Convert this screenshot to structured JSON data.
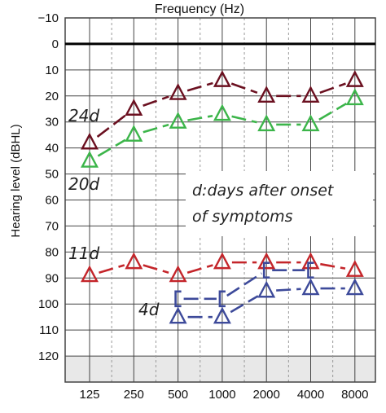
{
  "chart_data": {
    "type": "line",
    "title": "Frequency (Hz)",
    "ylabel": "Hearing level (dBHL)",
    "xlabel": "",
    "x": [
      "125",
      "250",
      "500",
      "1000",
      "2000",
      "4000",
      "8000"
    ],
    "ylim": [
      -10,
      130
    ],
    "y_inverted": true,
    "y_ticks": [
      -10,
      0,
      10,
      20,
      30,
      40,
      50,
      60,
      70,
      80,
      90,
      100,
      110,
      120
    ],
    "reference_line": 0,
    "shaded_band": [
      120,
      130
    ],
    "grid": true,
    "series": [
      {
        "name": "24d",
        "color": "#6b1020",
        "marker": "triangle",
        "values": [
          38,
          25,
          19,
          14,
          20,
          20,
          14
        ]
      },
      {
        "name": "20d",
        "color": "#3cb54a",
        "marker": "triangle",
        "values": [
          45,
          35,
          30,
          27,
          31,
          31,
          21
        ]
      },
      {
        "name": "11d",
        "color": "#c4252a",
        "marker": "triangle",
        "values": [
          89,
          84,
          89,
          84,
          84,
          84,
          87
        ]
      },
      {
        "name": "4d",
        "color": "#3d4a9a",
        "marker": "triangle",
        "values": [
          null,
          null,
          105,
          105,
          95,
          94,
          94
        ]
      },
      {
        "name": "4d",
        "color": "#3d4a9a",
        "marker": "bracket",
        "values": [
          null,
          null,
          98,
          98,
          87,
          87,
          null
        ]
      }
    ],
    "annotation": [
      "d:days after onset",
      "of symptoms"
    ]
  }
}
